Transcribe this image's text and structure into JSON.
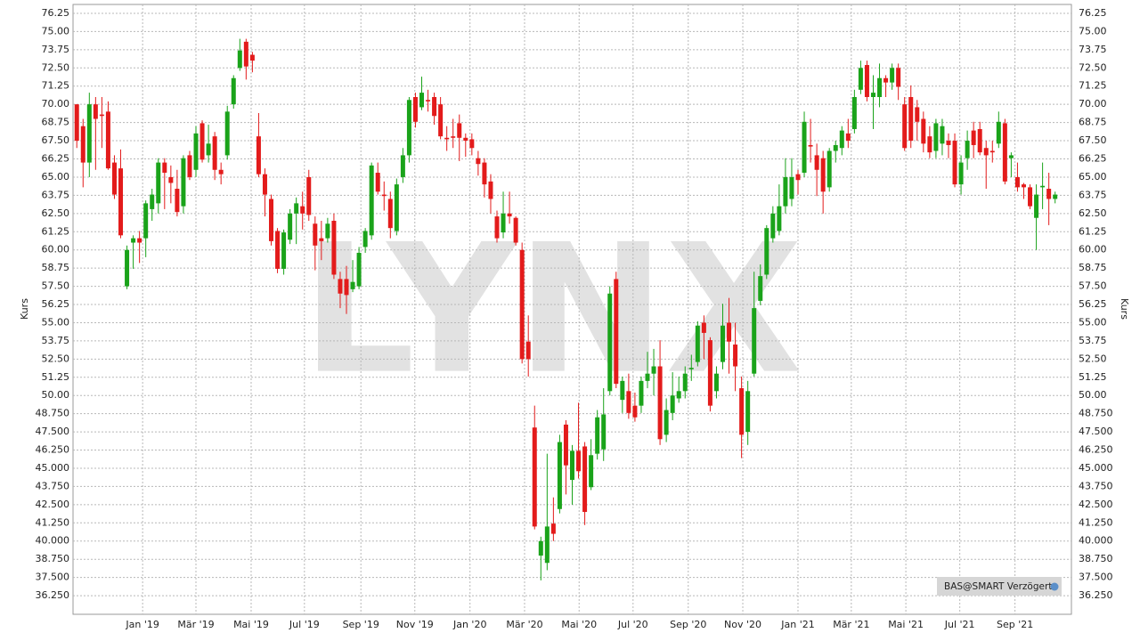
{
  "chart_data": {
    "type": "candlestick",
    "watermark": "LYNX",
    "ylabel": "Kurs",
    "source": "BAS@SMART Verzögert",
    "up_color": "#1aa31a",
    "down_color": "#e31b1b",
    "grid": true,
    "xlim": [
      -0.6,
      158.6
    ],
    "ylim": [
      34.97,
      76.86
    ],
    "xticks": [
      {
        "value": 10.5,
        "label": "Jan '19"
      },
      {
        "value": 19.0,
        "label": "Mär '19"
      },
      {
        "value": 27.8,
        "label": "Mai '19"
      },
      {
        "value": 36.3,
        "label": "Jul '19"
      },
      {
        "value": 45.3,
        "label": "Sep '19"
      },
      {
        "value": 53.9,
        "label": "Nov '19"
      },
      {
        "value": 62.7,
        "label": "Jan '20"
      },
      {
        "value": 71.4,
        "label": "Mär '20"
      },
      {
        "value": 80.1,
        "label": "Mai '20"
      },
      {
        "value": 88.7,
        "label": "Jul '20"
      },
      {
        "value": 97.5,
        "label": "Sep '20"
      },
      {
        "value": 106.2,
        "label": "Nov '20"
      },
      {
        "value": 115.0,
        "label": "Jan '21"
      },
      {
        "value": 123.5,
        "label": "Mär '21"
      },
      {
        "value": 132.2,
        "label": "Mai '21"
      },
      {
        "value": 140.8,
        "label": "Jul '21"
      },
      {
        "value": 149.6,
        "label": "Sep '21"
      }
    ],
    "yticks": [
      {
        "value": 36.25,
        "label": "36.250"
      },
      {
        "value": 37.5,
        "label": "37.500"
      },
      {
        "value": 38.75,
        "label": "38.750"
      },
      {
        "value": 40,
        "label": "40.000"
      },
      {
        "value": 41.25,
        "label": "41.250"
      },
      {
        "value": 42.5,
        "label": "42.500"
      },
      {
        "value": 43.75,
        "label": "43.750"
      },
      {
        "value": 45,
        "label": "45.000"
      },
      {
        "value": 46.25,
        "label": "46.250"
      },
      {
        "value": 47.5,
        "label": "47.500"
      },
      {
        "value": 48.75,
        "label": "48.750"
      },
      {
        "value": 50,
        "label": "50.00"
      },
      {
        "value": 51.25,
        "label": "51.25"
      },
      {
        "value": 52.5,
        "label": "52.50"
      },
      {
        "value": 53.75,
        "label": "53.75"
      },
      {
        "value": 55,
        "label": "55.00"
      },
      {
        "value": 56.25,
        "label": "56.25"
      },
      {
        "value": 57.5,
        "label": "57.50"
      },
      {
        "value": 58.75,
        "label": "58.75"
      },
      {
        "value": 60,
        "label": "60.00"
      },
      {
        "value": 61.25,
        "label": "61.25"
      },
      {
        "value": 62.5,
        "label": "62.50"
      },
      {
        "value": 63.75,
        "label": "63.75"
      },
      {
        "value": 65,
        "label": "65.00"
      },
      {
        "value": 66.25,
        "label": "66.25"
      },
      {
        "value": 67.5,
        "label": "67.50"
      },
      {
        "value": 68.75,
        "label": "68.75"
      },
      {
        "value": 70,
        "label": "70.00"
      },
      {
        "value": 71.25,
        "label": "71.25"
      },
      {
        "value": 72.5,
        "label": "72.50"
      },
      {
        "value": 73.75,
        "label": "73.75"
      },
      {
        "value": 75,
        "label": "75.00"
      },
      {
        "value": 76.25,
        "label": "76.25"
      }
    ],
    "candles": [
      [
        70,
        70,
        67,
        67.5
      ],
      [
        68.5,
        69,
        64.3,
        66
      ],
      [
        66,
        70.8,
        65,
        70
      ],
      [
        70,
        70.5,
        65.5,
        69
      ],
      [
        69.3,
        70.5,
        67,
        69.2
      ],
      [
        69.5,
        70.2,
        65.5,
        65.6
      ],
      [
        66,
        66.5,
        63.5,
        63.8
      ],
      [
        65.6,
        66.9,
        60.8,
        61
      ],
      [
        57.5,
        60.3,
        57.3,
        60
      ],
      [
        60.5,
        61,
        58.7,
        60.8
      ],
      [
        60.8,
        61.3,
        59.1,
        60.5
      ],
      [
        60.8,
        63.4,
        59.5,
        63.2
      ],
      [
        62.8,
        64.2,
        62,
        63.8
      ],
      [
        63.2,
        66.3,
        62.5,
        66
      ],
      [
        66,
        66.3,
        62.8,
        65.3
      ],
      [
        65,
        65.8,
        63.2,
        64.6
      ],
      [
        64.2,
        65.5,
        62.3,
        62.6
      ],
      [
        63,
        66.5,
        62.5,
        66.3
      ],
      [
        66.5,
        66.8,
        64.8,
        65
      ],
      [
        65.5,
        68.5,
        65,
        68
      ],
      [
        68.7,
        68.9,
        66,
        66.2
      ],
      [
        66.5,
        68.6,
        66,
        67.3
      ],
      [
        67.8,
        68.1,
        64.8,
        65.5
      ],
      [
        65.5,
        66,
        64.5,
        65.2
      ],
      [
        66.5,
        69.9,
        66.2,
        69.5
      ],
      [
        70,
        72,
        69.7,
        71.8
      ],
      [
        72.5,
        74.5,
        72.3,
        73.7
      ],
      [
        74.3,
        74.5,
        71.7,
        72.6
      ],
      [
        73.4,
        73.6,
        72.2,
        73
      ],
      [
        67.8,
        69.4,
        65,
        65.2
      ],
      [
        65.2,
        65.6,
        62.3,
        63.8
      ],
      [
        63.5,
        63.8,
        60.3,
        60.6
      ],
      [
        61.3,
        61.5,
        58.4,
        58.7
      ],
      [
        58.7,
        61.4,
        58.3,
        61.2
      ],
      [
        60.7,
        62.8,
        60.4,
        62.5
      ],
      [
        62.5,
        63.6,
        60.4,
        63.2
      ],
      [
        63,
        64,
        61.4,
        62.5
      ],
      [
        65,
        65.5,
        62,
        62.4
      ],
      [
        61.8,
        62.3,
        58.6,
        60.3
      ],
      [
        60.8,
        62,
        59.3,
        60.6
      ],
      [
        60.8,
        62.2,
        60.5,
        61.8
      ],
      [
        62,
        62.5,
        58,
        58.3
      ],
      [
        58,
        58.5,
        56,
        57
      ],
      [
        58,
        58.9,
        55.6,
        56.9
      ],
      [
        57.3,
        59.3,
        57.1,
        57.8
      ],
      [
        57.5,
        60.2,
        57.3,
        59.8
      ],
      [
        60.2,
        61.5,
        59.8,
        61.3
      ],
      [
        61,
        66,
        60.7,
        65.8
      ],
      [
        65.3,
        66,
        63.8,
        64
      ],
      [
        63.8,
        64.7,
        62.7,
        63.7
      ],
      [
        63.5,
        64,
        60.8,
        61.5
      ],
      [
        61.3,
        64.9,
        61,
        64.5
      ],
      [
        65,
        67,
        64.6,
        66.5
      ],
      [
        66.5,
        70.5,
        66,
        70.3
      ],
      [
        70.5,
        70.8,
        68.4,
        68.8
      ],
      [
        69.8,
        71.9,
        69.6,
        70.8
      ],
      [
        70.3,
        71,
        69.5,
        70.2
      ],
      [
        70.5,
        70.8,
        68.6,
        69.2
      ],
      [
        70,
        70.5,
        67.6,
        67.8
      ],
      [
        67.7,
        68.5,
        66.8,
        67.6
      ],
      [
        67.8,
        69,
        67,
        67.7
      ],
      [
        68.7,
        69.3,
        66.1,
        67.7
      ],
      [
        67.7,
        68,
        66.4,
        67.5
      ],
      [
        67.6,
        68,
        66.5,
        67
      ],
      [
        66.3,
        66.8,
        65.1,
        65.9
      ],
      [
        66,
        66.3,
        63.6,
        64.5
      ],
      [
        64.7,
        65.2,
        62.5,
        63.5
      ],
      [
        62.3,
        62.7,
        60.5,
        60.8
      ],
      [
        61.2,
        64,
        60.8,
        62.5
      ],
      [
        62.5,
        64,
        61.8,
        62.3
      ],
      [
        62.2,
        62.3,
        60.3,
        60.5
      ],
      [
        60,
        60.5,
        52.2,
        52.5
      ],
      [
        53.7,
        55.5,
        51.3,
        52.5
      ],
      [
        47.8,
        49.3,
        40.8,
        41
      ],
      [
        39,
        40.3,
        37.3,
        40
      ],
      [
        38.5,
        46,
        38,
        41
      ],
      [
        41.2,
        43,
        40,
        40.5
      ],
      [
        42.2,
        47.3,
        41.9,
        46.8
      ],
      [
        48,
        48.3,
        43.2,
        45.2
      ],
      [
        44.2,
        46.6,
        42.5,
        46.2
      ],
      [
        46.2,
        49.5,
        44.3,
        44.8
      ],
      [
        46.5,
        46.8,
        41.1,
        42
      ],
      [
        43.7,
        47,
        43.5,
        45.9
      ],
      [
        46,
        49,
        45.6,
        48.5
      ],
      [
        46.3,
        50.5,
        45.5,
        48.7
      ],
      [
        50.3,
        57.5,
        50,
        57
      ],
      [
        58,
        58.5,
        50.5,
        50.8
      ],
      [
        49.7,
        51.3,
        48.8,
        51
      ],
      [
        50.3,
        51.5,
        48.4,
        48.8
      ],
      [
        49.3,
        50.2,
        48.2,
        48.5
      ],
      [
        49.3,
        51.3,
        48.8,
        51
      ],
      [
        51,
        53,
        50.5,
        51.5
      ],
      [
        51.5,
        53.2,
        50,
        52
      ],
      [
        52,
        53.8,
        46.6,
        47
      ],
      [
        47.3,
        49.8,
        46.8,
        49
      ],
      [
        48.8,
        51.6,
        48.3,
        50
      ],
      [
        49.8,
        51.3,
        49.5,
        50.3
      ],
      [
        50.3,
        52,
        49.8,
        51.5
      ],
      [
        51.8,
        52.8,
        51,
        51.9
      ],
      [
        52.3,
        55.1,
        52,
        54.8
      ],
      [
        55,
        55.5,
        52.5,
        54.3
      ],
      [
        53.8,
        54,
        48.9,
        49.3
      ],
      [
        50.3,
        52,
        49.8,
        51.5
      ],
      [
        52.3,
        56.3,
        51.8,
        54.8
      ],
      [
        55,
        56.7,
        51.5,
        53.7
      ],
      [
        53.5,
        55,
        50.3,
        52
      ],
      [
        50.5,
        51.3,
        45.7,
        47.3
      ],
      [
        47.5,
        51,
        46.6,
        50.3
      ],
      [
        51.5,
        58.5,
        51.3,
        56
      ],
      [
        56.5,
        59,
        56.2,
        58.2
      ],
      [
        58.3,
        61.7,
        58,
        61.5
      ],
      [
        60.8,
        63,
        60.5,
        62.5
      ],
      [
        61.3,
        64.5,
        61,
        63
      ],
      [
        63,
        66.3,
        62.5,
        65
      ],
      [
        63.5,
        66.3,
        63,
        65
      ],
      [
        65.2,
        65.5,
        63.8,
        64.8
      ],
      [
        65.3,
        69.5,
        65,
        68.8
      ],
      [
        67.2,
        69,
        66,
        67.1
      ],
      [
        66.5,
        67.3,
        63.7,
        65.5
      ],
      [
        66.3,
        66.8,
        62.5,
        64
      ],
      [
        64.3,
        67,
        64,
        66.8
      ],
      [
        66.8,
        67.5,
        66,
        67.2
      ],
      [
        67,
        68.5,
        66.5,
        68.2
      ],
      [
        68,
        69,
        67,
        67.5
      ],
      [
        68.3,
        71,
        68,
        70.5
      ],
      [
        71,
        73,
        70.7,
        72.5
      ],
      [
        72.7,
        73,
        70.2,
        70.5
      ],
      [
        70.5,
        72,
        68.3,
        70.8
      ],
      [
        70.5,
        72.8,
        69.8,
        71.8
      ],
      [
        71.8,
        72,
        70.5,
        71.5
      ],
      [
        71.5,
        72.8,
        71,
        72.5
      ],
      [
        72.5,
        72.8,
        70.3,
        71.2
      ],
      [
        70,
        70.5,
        66.8,
        67
      ],
      [
        70.5,
        71.3,
        67,
        67.5
      ],
      [
        69.8,
        70.3,
        67.5,
        68.8
      ],
      [
        69,
        69.5,
        66.7,
        67.3
      ],
      [
        67.8,
        68.5,
        66.3,
        66.7
      ],
      [
        66.8,
        69,
        66.3,
        68.7
      ],
      [
        67.3,
        69,
        66.5,
        68.5
      ],
      [
        67.5,
        68,
        66.3,
        67.2
      ],
      [
        67.5,
        68,
        64.3,
        64.5
      ],
      [
        64.5,
        66.5,
        63.8,
        66
      ],
      [
        66.3,
        68.2,
        65.5,
        67.5
      ],
      [
        68.2,
        68.8,
        66.3,
        67.2
      ],
      [
        68.3,
        68.8,
        66.5,
        66.7
      ],
      [
        67,
        67.5,
        64.2,
        66.5
      ],
      [
        66.8,
        67.5,
        66,
        66.7
      ],
      [
        67.3,
        69.5,
        67,
        68.8
      ],
      [
        68.7,
        69,
        64.5,
        64.7
      ],
      [
        66.3,
        66.7,
        65,
        66.5
      ],
      [
        65,
        66,
        64,
        64.3
      ],
      [
        64.5,
        64.6,
        63.5,
        64.3
      ],
      [
        64.3,
        64.5,
        62.8,
        63
      ],
      [
        62.2,
        64.5,
        60,
        63.8
      ],
      [
        64.3,
        66,
        62.8,
        64.4
      ],
      [
        64.2,
        65.3,
        61.7,
        63.5
      ],
      [
        63.5,
        64,
        63.2,
        63.8
      ]
    ]
  }
}
